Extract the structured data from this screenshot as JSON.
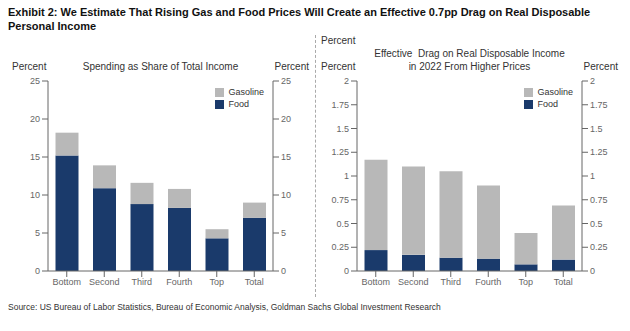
{
  "title": "Exhibit 2: We Estimate That Rising Gas and Food Prices Will Create an Effective 0.7pp Drag on Real Disposable Personal Income",
  "source": "Source: US Bureau of Labor Statistics, Bureau of Economic Analysis, Goldman Sachs Global Investment Research",
  "chart_data": [
    {
      "type": "bar",
      "stacked": true,
      "title": "Spending as Share of Total Income",
      "ylabel": "Percent",
      "y2label": "Percent",
      "categories": [
        "Bottom",
        "Second",
        "Third",
        "Fourth",
        "Top",
        "Total"
      ],
      "series": [
        {
          "name": "Food",
          "color": "#1a3a6b",
          "values": [
            15.2,
            10.9,
            8.8,
            8.3,
            4.3,
            7.0
          ]
        },
        {
          "name": "Gasoline",
          "color": "#b8b8b8",
          "values": [
            3.0,
            3.0,
            2.8,
            2.5,
            1.2,
            2.0
          ]
        }
      ],
      "ylim": [
        0,
        25
      ],
      "yticks": [
        0,
        5,
        10,
        15,
        20,
        25
      ],
      "y2lim": [
        0,
        25
      ],
      "y2ticks": [
        0,
        5,
        10,
        15,
        20,
        25
      ],
      "legend": "upper right",
      "grid": false
    },
    {
      "type": "bar",
      "stacked": true,
      "title": "Effective  Drag on Real Disposable Income\nin 2022 From Higher Prices",
      "ylabel": "Percent",
      "y2label": "Percent",
      "annotations": [
        "Percent"
      ],
      "categories": [
        "Bottom",
        "Second",
        "Third",
        "Fourth",
        "Top",
        "Total"
      ],
      "series": [
        {
          "name": "Food",
          "color": "#1a3a6b",
          "values": [
            0.22,
            0.17,
            0.14,
            0.13,
            0.07,
            0.12
          ]
        },
        {
          "name": "Gasoline",
          "color": "#b8b8b8",
          "values": [
            0.95,
            0.93,
            0.91,
            0.77,
            0.33,
            0.57
          ]
        }
      ],
      "ylim": [
        0,
        2
      ],
      "yticks": [
        0,
        0.25,
        0.5,
        0.75,
        1.0,
        1.25,
        1.5,
        1.75,
        2.0
      ],
      "y2lim": [
        0,
        2
      ],
      "y2ticks": [
        0,
        0.25,
        0.5,
        0.75,
        1.0,
        1.25,
        1.5,
        1.75,
        2.0
      ],
      "legend": "upper right",
      "grid": false
    }
  ]
}
